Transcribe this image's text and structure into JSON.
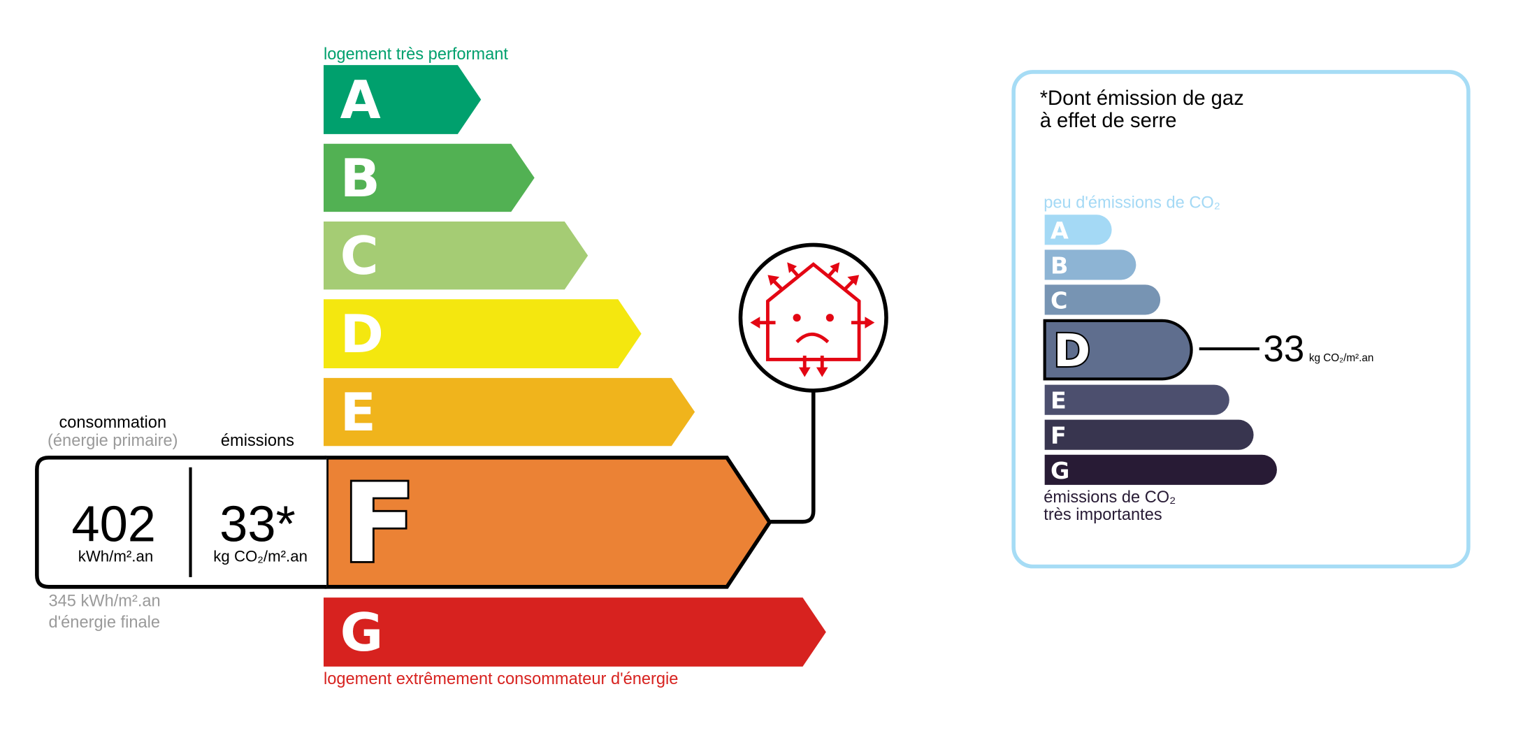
{
  "dpe": {
    "top_label": "logement très performant",
    "bottom_label": "logement extrêmement consommateur d'énergie",
    "classes": [
      {
        "letter": "A",
        "color": "#00a06d"
      },
      {
        "letter": "B",
        "color": "#52b153"
      },
      {
        "letter": "C",
        "color": "#a5cc74"
      },
      {
        "letter": "D",
        "color": "#f4e70f"
      },
      {
        "letter": "E",
        "color": "#f0b41c"
      },
      {
        "letter": "F",
        "color": "#eb8235"
      },
      {
        "letter": "G",
        "color": "#d7221f"
      }
    ],
    "current_class": "F",
    "consumption_label": "consommation",
    "consumption_sub": "(énergie primaire)",
    "emissions_label": "émissions",
    "consumption_value": "402",
    "consumption_unit": "kWh/m².an",
    "emissions_value": "33*",
    "emissions_unit": "kg CO₂/m².an",
    "final_energy_line1": "345 kWh/m².an",
    "final_energy_line2": "d'énergie finale",
    "icon": "sad-house-heat-loss-icon",
    "icon_color": "#e30613"
  },
  "ges": {
    "title_line1": "*Dont émission de gaz",
    "title_line2": "à effet de serre",
    "top_label": "peu d'émissions de CO₂",
    "bottom_label_line1": "émissions de CO₂",
    "bottom_label_line2": "très importantes",
    "classes": [
      {
        "letter": "A",
        "color": "#a4d9f5"
      },
      {
        "letter": "B",
        "color": "#8db4d4"
      },
      {
        "letter": "C",
        "color": "#7794b3"
      },
      {
        "letter": "D",
        "color": "#5f6e8e"
      },
      {
        "letter": "E",
        "color": "#4c4f6e"
      },
      {
        "letter": "F",
        "color": "#38354f"
      },
      {
        "letter": "G",
        "color": "#281b35"
      }
    ],
    "current_class": "D",
    "value": "33",
    "unit": "kg CO₂/m².an",
    "border_color": "#a6dcf5"
  }
}
